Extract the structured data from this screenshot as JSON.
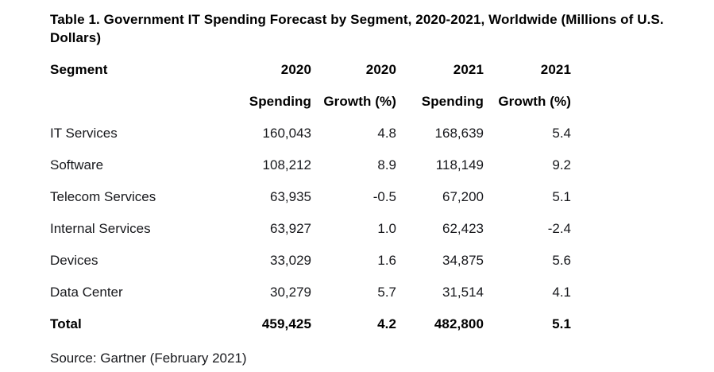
{
  "title": "Table 1. Government IT Spending Forecast by Segment, 2020-2021, Worldwide (Millions of U.S. Dollars)",
  "source_note": "Source: Gartner (February 2021)",
  "colors": {
    "background": "#ffffff",
    "heading_text": "#000000",
    "body_text": "#17181c"
  },
  "table": {
    "header_row_years": {
      "segment": "Segment",
      "col2": "2020",
      "col3": "2020",
      "col4": "2021",
      "col5": "2021"
    },
    "header_row_measures": {
      "segment": "",
      "col2": "Spending",
      "col3": "Growth (%)",
      "col4": "Spending",
      "col5": "Growth (%)"
    },
    "rows": [
      {
        "segment": "IT Services",
        "spending_2020": "160,043",
        "growth_2020": "4.8",
        "spending_2021": "168,639",
        "growth_2021": "5.4"
      },
      {
        "segment": "Software",
        "spending_2020": "108,212",
        "growth_2020": "8.9",
        "spending_2021": "118,149",
        "growth_2021": "9.2"
      },
      {
        "segment": "Telecom Services",
        "spending_2020": "63,935",
        "growth_2020": "-0.5",
        "spending_2021": "67,200",
        "growth_2021": "5.1"
      },
      {
        "segment": "Internal Services",
        "spending_2020": "63,927",
        "growth_2020": "1.0",
        "spending_2021": "62,423",
        "growth_2021": "-2.4"
      },
      {
        "segment": "Devices",
        "spending_2020": "33,029",
        "growth_2020": "1.6",
        "spending_2021": "34,875",
        "growth_2021": "5.6"
      },
      {
        "segment": "Data Center",
        "spending_2020": "30,279",
        "growth_2020": "5.7",
        "spending_2021": "31,514",
        "growth_2021": "4.1"
      }
    ],
    "total_row": {
      "segment": "Total",
      "spending_2020": "459,425",
      "growth_2020": "4.2",
      "spending_2021": "482,800",
      "growth_2021": "5.1"
    }
  },
  "chart_data": {
    "type": "table",
    "title": "Table 1. Government IT Spending Forecast by Segment, 2020-2021, Worldwide (Millions of U.S. Dollars)",
    "columns": [
      "Segment",
      "2020 Spending",
      "2020 Growth (%)",
      "2021 Spending",
      "2021 Growth (%)"
    ],
    "rows": [
      [
        "IT Services",
        160043,
        4.8,
        168639,
        5.4
      ],
      [
        "Software",
        108212,
        8.9,
        118149,
        9.2
      ],
      [
        "Telecom Services",
        63935,
        -0.5,
        67200,
        5.1
      ],
      [
        "Internal Services",
        63927,
        1.0,
        62423,
        -2.4
      ],
      [
        "Devices",
        33029,
        1.6,
        34875,
        5.6
      ],
      [
        "Data Center",
        30279,
        5.7,
        31514,
        4.1
      ]
    ],
    "total": [
      "Total",
      459425,
      4.2,
      482800,
      5.1
    ],
    "source": "Source: Gartner (February 2021)",
    "units": "Millions of U.S. Dollars"
  }
}
